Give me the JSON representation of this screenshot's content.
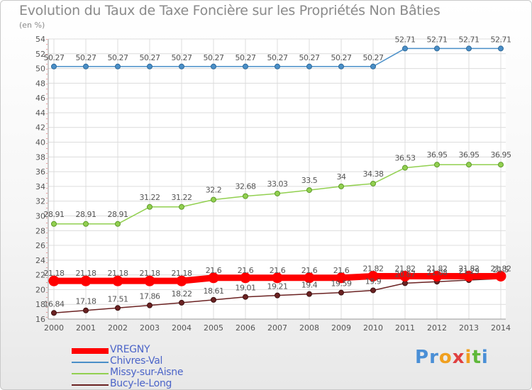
{
  "title": "Evolution du Taux de Taxe Foncière sur les Propriétés Non Bâties",
  "unit_label": "(en %)",
  "logo": {
    "text": "Proxiti",
    "letters": [
      "P",
      "r",
      "o",
      "x",
      "i",
      "t",
      "i"
    ],
    "colors": [
      "#4a8fd6",
      "#4a8fd6",
      "#f0a020",
      "#e04040",
      "#f0a020",
      "#5fb83a",
      "#4a8fd6"
    ]
  },
  "chart_data": {
    "type": "line",
    "title": "Evolution du Taux de Taxe Foncière sur les Propriétés Non Bâties",
    "ylabel": "(en %)",
    "xlabel": "",
    "x": [
      "2000",
      "2001",
      "2002",
      "2003",
      "2004",
      "2005",
      "2006",
      "2007",
      "2008",
      "2009",
      "2010",
      "2011",
      "2012",
      "2013",
      "2014"
    ],
    "ylim": [
      16,
      54
    ],
    "yticks": [
      16,
      18,
      20,
      22,
      24,
      26,
      28,
      30,
      32,
      34,
      36,
      38,
      40,
      42,
      44,
      46,
      48,
      50,
      52,
      54
    ],
    "grid": true,
    "legend_position": "bottom-left",
    "series": [
      {
        "name": "VREGNY",
        "color": "#ff0000",
        "values": [
          21.18,
          21.18,
          21.18,
          21.18,
          21.18,
          21.6,
          21.6,
          21.6,
          21.6,
          21.6,
          21.82,
          21.82,
          21.82,
          21.82,
          21.82
        ],
        "labels": [
          "21.18",
          "21.18",
          "21.18",
          "21.18",
          "21.18",
          "21.6",
          "21.6",
          "21.6",
          "21.6",
          "21.6",
          "21.82",
          "21.82",
          "21.82",
          "21.82",
          "21.82"
        ]
      },
      {
        "name": "Chivres-Val",
        "color": "#4a8fc8",
        "values": [
          50.27,
          50.27,
          50.27,
          50.27,
          50.27,
          50.27,
          50.27,
          50.27,
          50.27,
          50.27,
          50.27,
          52.71,
          52.71,
          52.71,
          52.71
        ],
        "labels": [
          "50.27",
          "50.27",
          "50.27",
          "50.27",
          "50.27",
          "50.27",
          "50.27",
          "50.27",
          "50.27",
          "50.27",
          "50.27",
          "52.71",
          "52.71",
          "52.71",
          "52.71"
        ]
      },
      {
        "name": "Missy-sur-Aisne",
        "color": "#92d050",
        "values": [
          28.91,
          28.91,
          28.91,
          31.22,
          31.22,
          32.2,
          32.68,
          33.03,
          33.5,
          34,
          34.38,
          36.53,
          36.95,
          36.95,
          36.95
        ],
        "labels": [
          "28.91",
          "28.91",
          "28.91",
          "31.22",
          "31.22",
          "32.2",
          "32.68",
          "33.03",
          "33.5",
          "34",
          "34.38",
          "36.53",
          "36.95",
          "36.95",
          "36.95"
        ]
      },
      {
        "name": "Bucy-le-Long",
        "color": "#6b2222",
        "values": [
          16.84,
          17.18,
          17.51,
          17.86,
          18.22,
          18.61,
          19.01,
          19.21,
          19.4,
          19.59,
          19.9,
          20.87,
          21.08,
          21.29,
          21.5
        ],
        "labels": [
          "16.84",
          "17.18",
          "17.51",
          "17.86",
          "18.22",
          "18.61",
          "19.01",
          "19.21",
          "19.4",
          "19.59",
          "19.9",
          "20.87",
          "21.08",
          "21.29",
          "21.5"
        ]
      }
    ]
  }
}
